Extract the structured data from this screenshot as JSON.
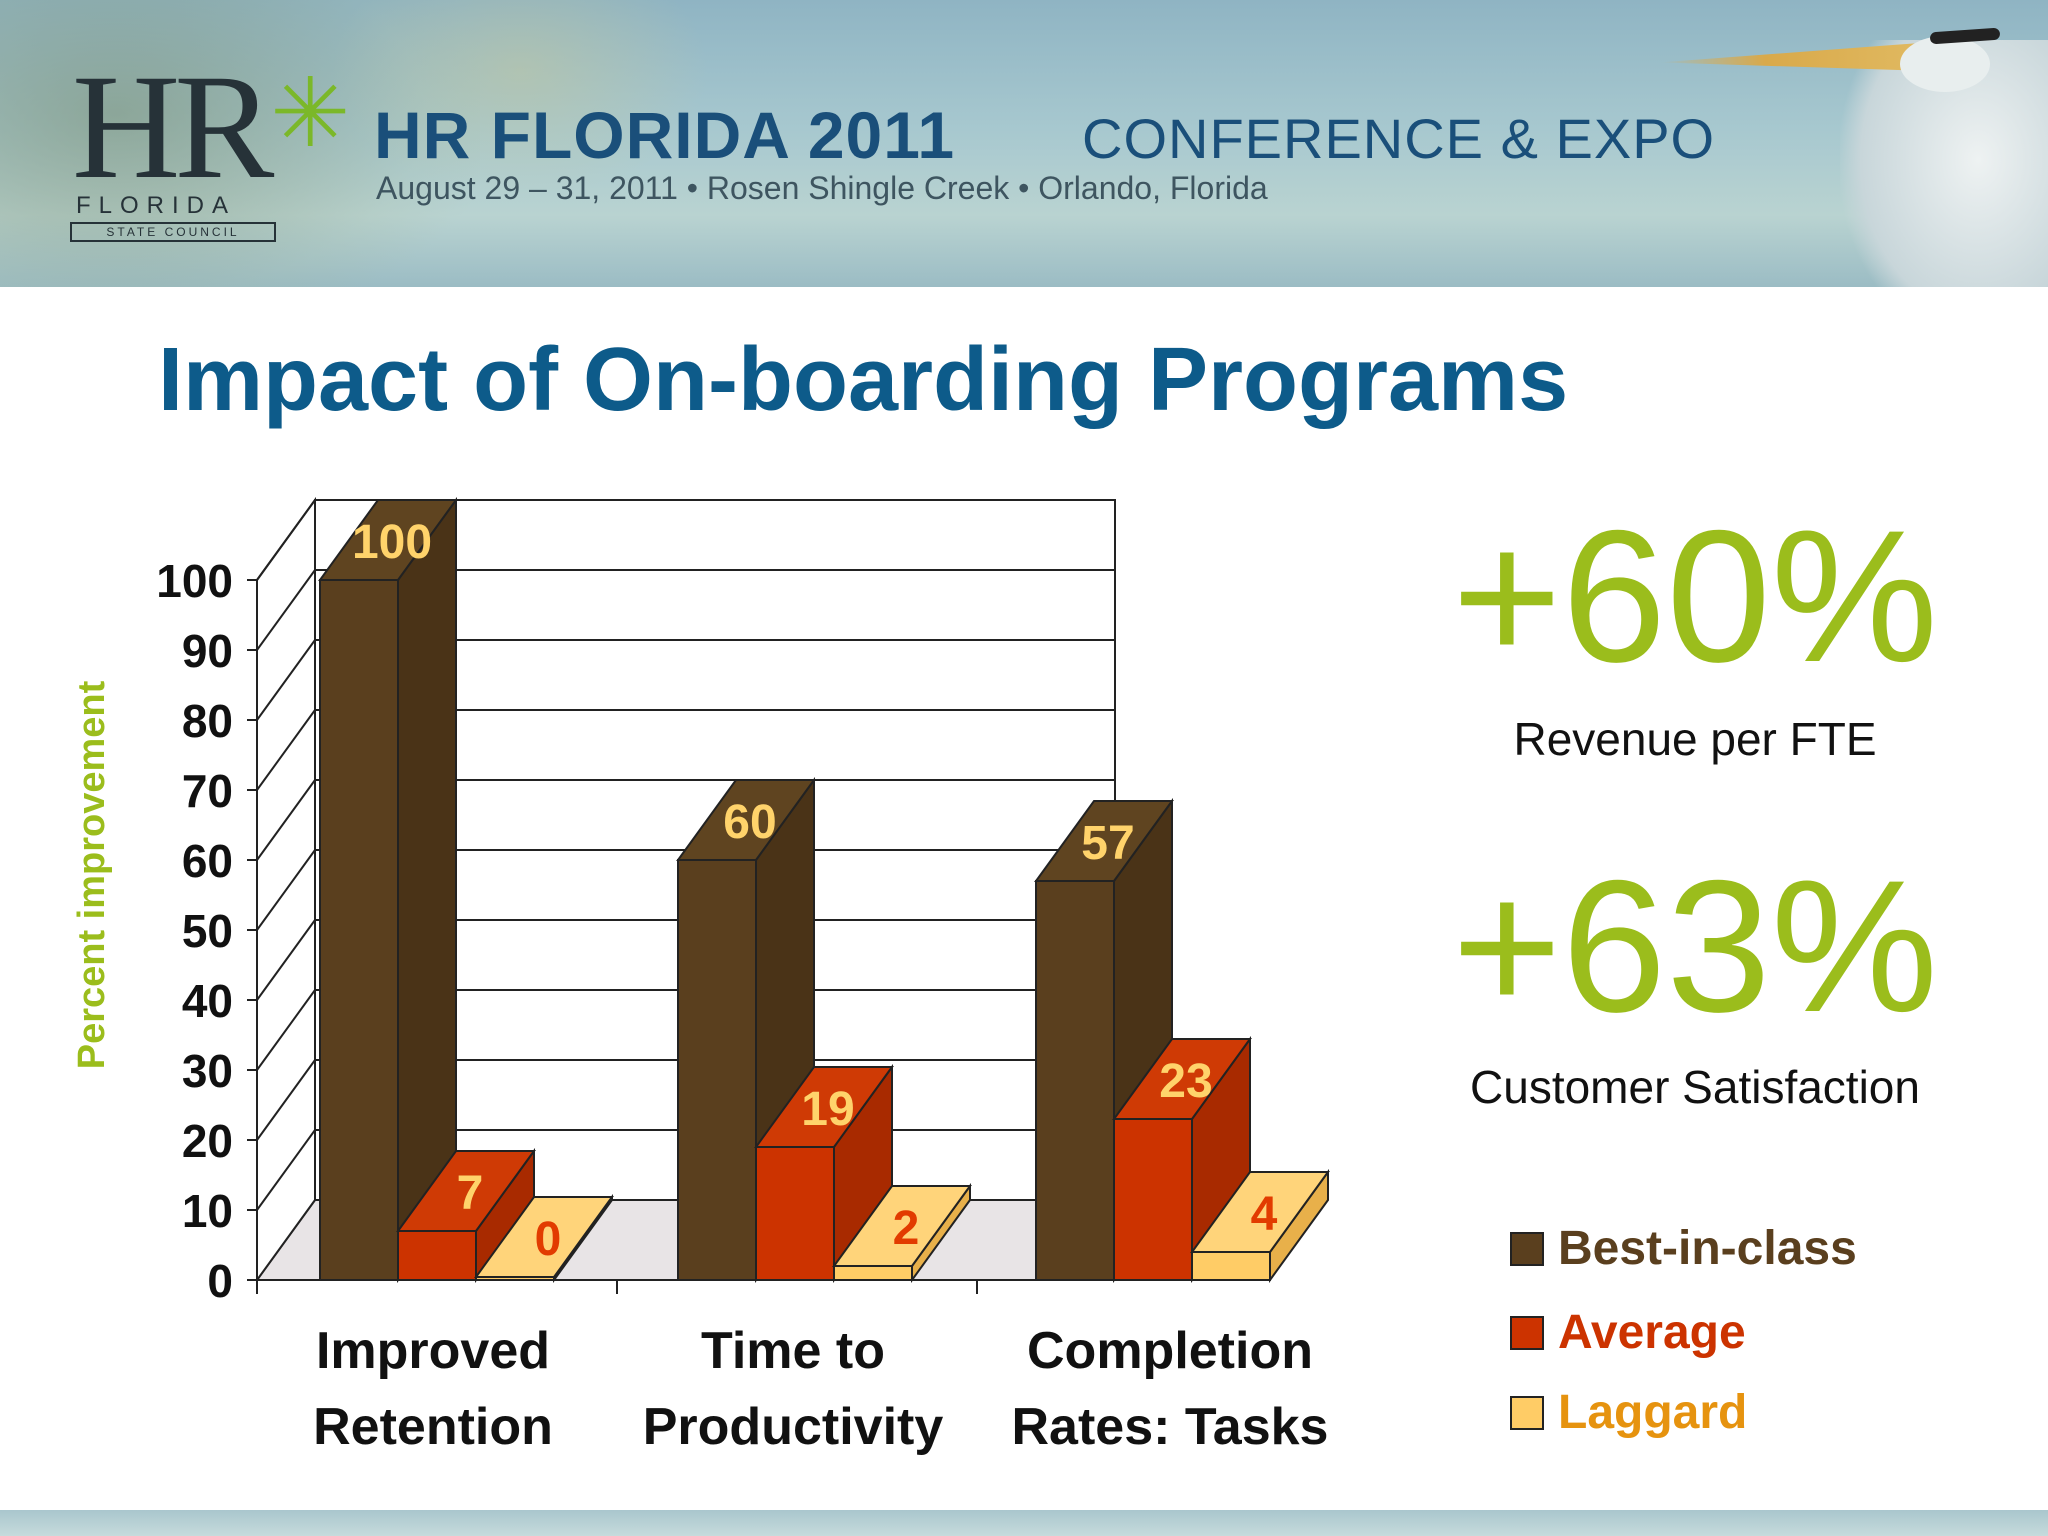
{
  "banner": {
    "logo_hr": "HR",
    "logo_florida": "FLORIDA",
    "logo_council": "STATE COUNCIL",
    "conference_title": "HR FLORIDA 2011",
    "conference_subtitle": "CONFERENCE & EXPO",
    "conference_details": "August 29 – 31, 2011  •  Rosen Shingle Creek  •  Orlando, Florida"
  },
  "slide": {
    "title": "Impact of On-boarding Programs"
  },
  "stats": [
    {
      "value": "+60%",
      "label": "Revenue per FTE"
    },
    {
      "value": "+63%",
      "label": "Customer Satisfaction"
    }
  ],
  "colors": {
    "best": "#5a3f1e",
    "average": "#cc3300",
    "laggard": "#ffcc66",
    "title": "#0d5b8a",
    "accent": "#9bbd1c"
  },
  "chart_data": {
    "type": "bar",
    "title": "",
    "ylabel": "Percent improvement",
    "xlabel": "",
    "ylim": [
      0,
      100
    ],
    "yticks": [
      0,
      10,
      20,
      30,
      40,
      50,
      60,
      70,
      80,
      90,
      100
    ],
    "grid": true,
    "legend_position": "bottom-right",
    "categories": [
      [
        "Improved",
        "Retention"
      ],
      [
        "Time to",
        "Productivity"
      ],
      [
        "Completion",
        "Rates: Tasks"
      ]
    ],
    "series": [
      {
        "name": "Best-in-class",
        "values": [
          100,
          60,
          57
        ]
      },
      {
        "name": "Average",
        "values": [
          7,
          19,
          23
        ]
      },
      {
        "name": "Laggard",
        "values": [
          0,
          2,
          4
        ]
      }
    ]
  }
}
